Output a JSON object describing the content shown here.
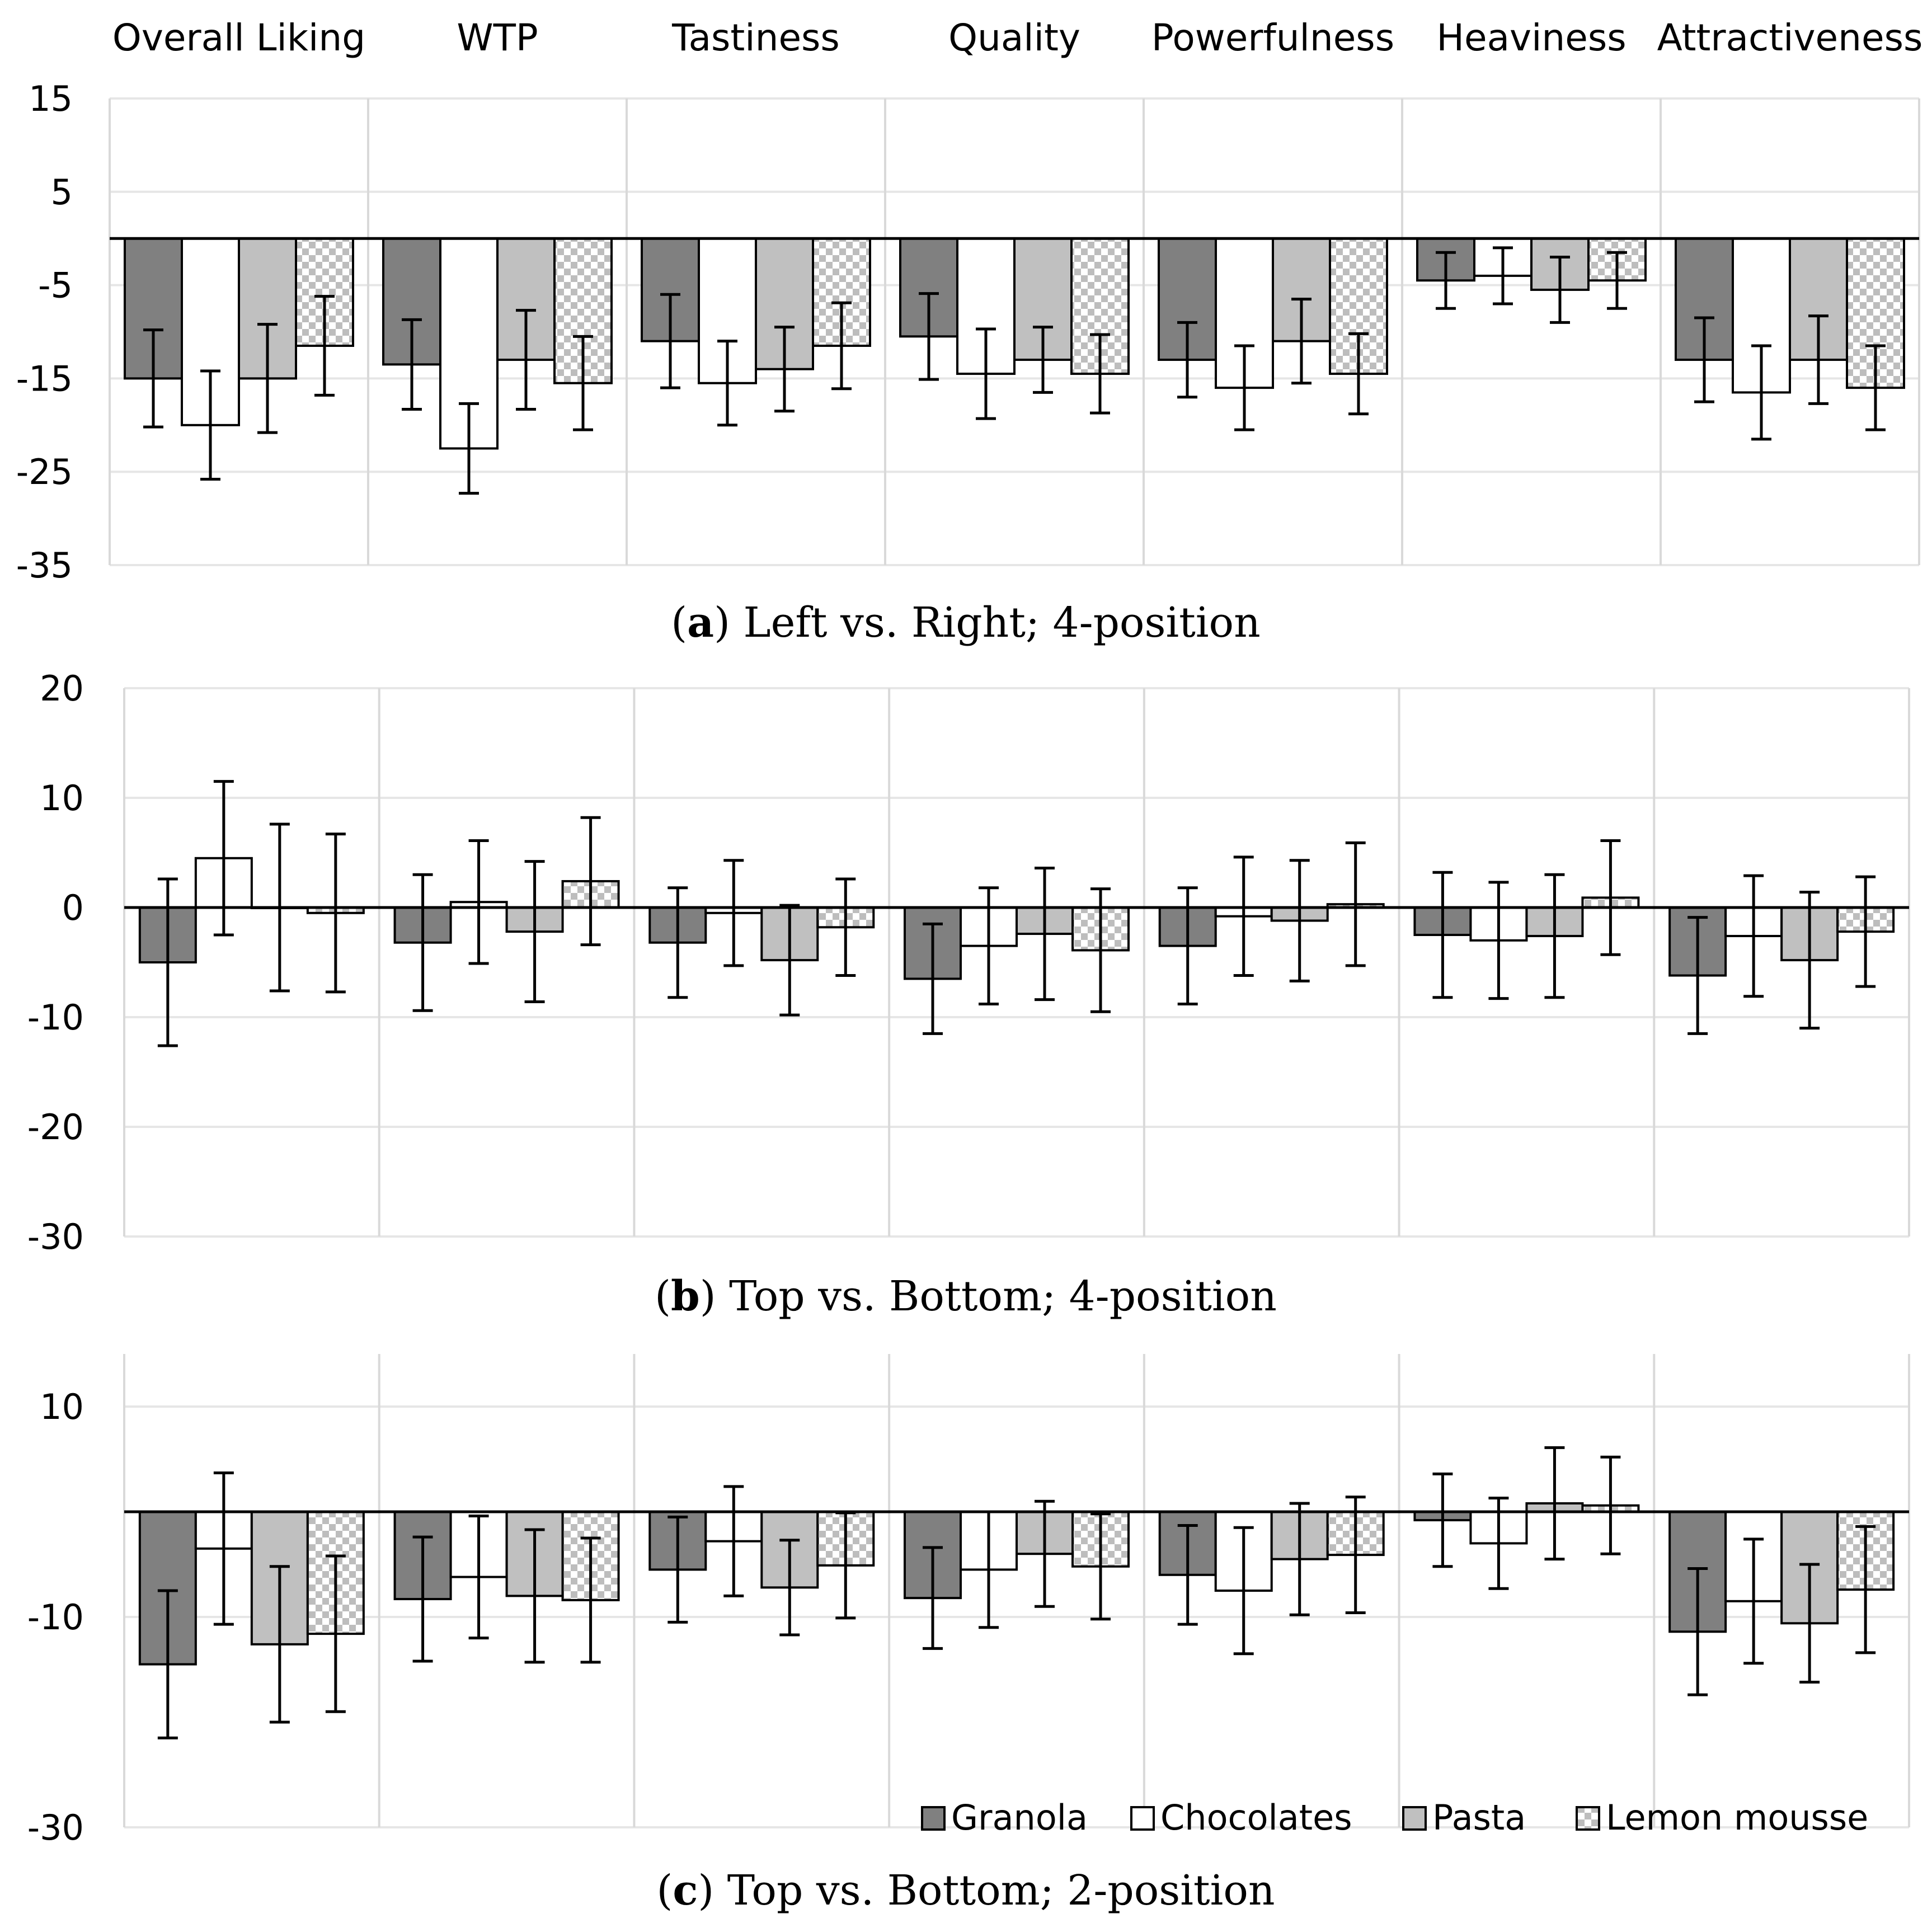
{
  "colors": {
    "Granola": "#808080",
    "Chocolates": "#ffffff",
    "Pasta": "#c0c0c0",
    "Lemon mousse": "checker"
  },
  "legend": {
    "placement": "bottom-right",
    "items": [
      "Granola",
      "Chocolates",
      "Pasta",
      "Lemon mousse"
    ]
  },
  "chart_data": [
    {
      "type": "bar",
      "panel": "a",
      "caption_letter": "a",
      "caption_text": "Left vs. Right; 4-position",
      "categories": [
        "Overall Liking",
        "WTP",
        "Tastiness",
        "Quality",
        "Powerfulness",
        "Heaviness",
        "Attractiveness"
      ],
      "ylim": [
        -35,
        15
      ],
      "yticks": [
        15,
        5,
        -5,
        -15,
        -25,
        -35
      ],
      "grid": true,
      "series": [
        {
          "name": "Granola",
          "values": [
            -15,
            -13.5,
            -11,
            -10.5,
            -13,
            -4.5,
            -13
          ],
          "errors": [
            5.2,
            4.8,
            5,
            4.6,
            4,
            3,
            4.5
          ]
        },
        {
          "name": "Chocolates",
          "values": [
            -20,
            -22.5,
            -15.5,
            -14.5,
            -16,
            -4,
            -16.5
          ],
          "errors": [
            5.8,
            4.8,
            4.5,
            4.8,
            4.5,
            3,
            5
          ]
        },
        {
          "name": "Pasta",
          "values": [
            -15,
            -13,
            -14,
            -13,
            -11,
            -5.5,
            -13
          ],
          "errors": [
            5.8,
            5.3,
            4.5,
            3.5,
            4.5,
            3.5,
            4.7
          ]
        },
        {
          "name": "Lemon mousse",
          "values": [
            -11.5,
            -15.5,
            -11.5,
            -14.5,
            -14.5,
            -4.5,
            -16
          ],
          "errors": [
            5.3,
            5,
            4.6,
            4.2,
            4.3,
            3,
            4.5
          ]
        }
      ]
    },
    {
      "type": "bar",
      "panel": "b",
      "caption_letter": "b",
      "caption_text": "Top vs. Bottom; 4-position",
      "categories": [
        "Overall Liking",
        "WTP",
        "Tastiness",
        "Quality",
        "Powerfulness",
        "Heaviness",
        "Attractiveness"
      ],
      "ylim": [
        -30,
        20
      ],
      "yticks": [
        20,
        10,
        0,
        -10,
        -20,
        -30
      ],
      "grid": true,
      "series": [
        {
          "name": "Granola",
          "values": [
            -5,
            -3.2,
            -3.2,
            -6.5,
            -3.5,
            -2.5,
            -6.2
          ],
          "errors": [
            7.6,
            6.2,
            5,
            5,
            5.3,
            5.7,
            5.3
          ]
        },
        {
          "name": "Chocolates",
          "values": [
            4.5,
            0.5,
            -0.5,
            -3.5,
            -0.8,
            -3,
            -2.6
          ],
          "errors": [
            7,
            5.6,
            4.8,
            5.3,
            5.4,
            5.3,
            5.5
          ]
        },
        {
          "name": "Pasta",
          "values": [
            0,
            -2.2,
            -4.8,
            -2.4,
            -1.2,
            -2.6,
            -4.8
          ],
          "errors": [
            7.6,
            6.4,
            5,
            6,
            5.5,
            5.6,
            6.2
          ]
        },
        {
          "name": "Lemon mousse",
          "values": [
            -0.5,
            2.4,
            -1.8,
            -3.9,
            0.3,
            0.9,
            -2.2
          ],
          "errors": [
            7.2,
            5.8,
            4.4,
            5.6,
            5.6,
            5.2,
            5
          ]
        }
      ]
    },
    {
      "type": "bar",
      "panel": "c",
      "caption_letter": "c",
      "caption_text": "Top vs. Bottom; 2-position",
      "categories": [
        "Overall Liking",
        "WTP",
        "Tastiness",
        "Quality",
        "Powerfulness",
        "Heaviness",
        "Attractiveness"
      ],
      "ylim": [
        -30,
        15
      ],
      "yticks": [
        10,
        -10,
        -30
      ],
      "grid": true,
      "series": [
        {
          "name": "Granola",
          "values": [
            -14.5,
            -8.3,
            -5.5,
            -8.2,
            -6,
            -0.8,
            -11.4
          ],
          "errors": [
            7,
            5.9,
            5,
            4.8,
            4.7,
            4.4,
            6
          ]
        },
        {
          "name": "Chocolates",
          "values": [
            -3.5,
            -6.2,
            -2.8,
            -5.5,
            -7.5,
            -3,
            -8.5
          ],
          "errors": [
            7.2,
            5.8,
            5.2,
            5.5,
            6,
            4.3,
            5.9
          ]
        },
        {
          "name": "Pasta",
          "values": [
            -12.6,
            -8,
            -7.2,
            -4,
            -4.5,
            0.8,
            -10.6
          ],
          "errors": [
            7.4,
            6.3,
            4.5,
            5,
            5.3,
            5.3,
            5.6
          ]
        },
        {
          "name": "Lemon mousse",
          "values": [
            -11.6,
            -8.4,
            -5.1,
            -5.2,
            -4.1,
            0.6,
            -7.4
          ],
          "errors": [
            7.4,
            5.9,
            5,
            5,
            5.5,
            4.6,
            6
          ]
        }
      ]
    }
  ]
}
